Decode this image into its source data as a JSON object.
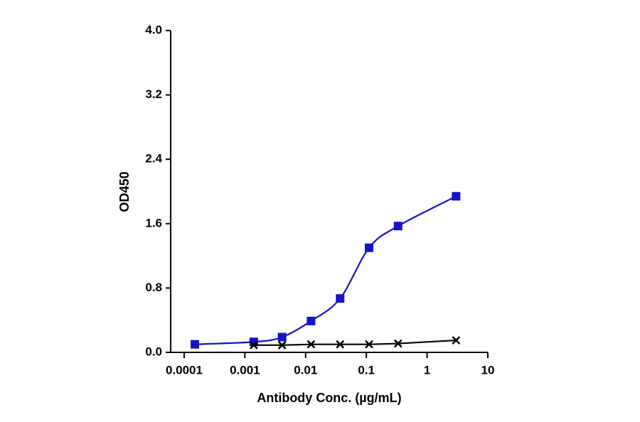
{
  "chart_data": {
    "type": "scatter",
    "log_x": true,
    "x_label": "Antibody Conc. (µg/mL)",
    "y_label": "OD450",
    "xlim": [
      6e-05,
      10
    ],
    "xticks": [
      0.0001,
      0.001,
      0.01,
      0.1,
      1,
      10
    ],
    "ylim": [
      0,
      4
    ],
    "yticks": [
      {
        "value": 0,
        "label": "0.0"
      },
      0.8,
      1.6,
      2.4,
      3.2,
      {
        "value": 4,
        "label": "4.0"
      }
    ],
    "series": [
      {
        "color": "#1414c8",
        "marker": "square",
        "curve": "smooth",
        "x": [
          0.00015,
          0.0014,
          0.0041,
          0.0123,
          0.037,
          0.111,
          0.333,
          3
        ],
        "values": [
          0.1,
          0.13,
          0.19,
          0.39,
          0.67,
          1.3,
          1.57,
          1.94
        ]
      },
      {
        "color": "#000000",
        "marker": "x",
        "curve": "straight",
        "x": [
          0.0014,
          0.0041,
          0.0123,
          0.037,
          0.111,
          0.333,
          3
        ],
        "values": [
          0.09,
          0.09,
          0.1,
          0.1,
          0.1,
          0.11,
          0.15
        ]
      }
    ]
  }
}
